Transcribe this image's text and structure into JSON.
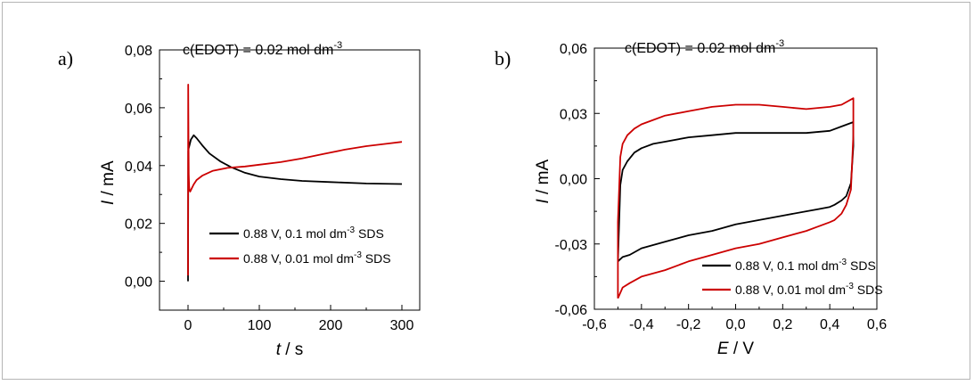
{
  "chart_data": [
    {
      "type": "line",
      "panel_label": "a)",
      "annotation": {
        "text": "c(EDOT) = 0.02 mol dm",
        "sup": "-3"
      },
      "xlabel": {
        "var": "t",
        "unit": " / s"
      },
      "ylabel": {
        "var": "I",
        "unit": " / mA"
      },
      "xlim": [
        -40,
        325
      ],
      "ylim": [
        -0.01,
        0.08
      ],
      "xticks": [
        0,
        100,
        200,
        300
      ],
      "xtick_labels": [
        "0",
        "100",
        "200",
        "300"
      ],
      "yticks": [
        0,
        0.02,
        0.04,
        0.06,
        0.08
      ],
      "ytick_labels": [
        "0,00",
        "0,02",
        "0,04",
        "0,06",
        "0,08"
      ],
      "grid": false,
      "legend_position": "center-right",
      "series": [
        {
          "name": {
            "pre": "0.88 V, 0.1 mol dm",
            "sup": "-3",
            "post": " SDS"
          },
          "color": "#000000",
          "x": [
            0,
            0.4,
            1,
            2,
            4,
            8,
            12,
            20,
            30,
            45,
            60,
            80,
            100,
            130,
            160,
            200,
            250,
            300
          ],
          "y": [
            0.0,
            0.045,
            0.046,
            0.047,
            0.049,
            0.0505,
            0.0495,
            0.047,
            0.0442,
            0.0415,
            0.0395,
            0.0375,
            0.0362,
            0.0353,
            0.0347,
            0.0343,
            0.0338,
            0.0336
          ]
        },
        {
          "name": {
            "pre": "0.88 V, 0.01 mol dm",
            "sup": "-3",
            "post": " SDS"
          },
          "color": "#cc0000",
          "x": [
            0,
            0.3,
            0.6,
            1,
            1.5,
            2,
            3,
            5,
            8,
            12,
            20,
            35,
            55,
            80,
            100,
            130,
            160,
            190,
            220,
            250,
            280,
            300
          ],
          "y": [
            0.002,
            0.068,
            0.05,
            0.037,
            0.033,
            0.0315,
            0.031,
            0.032,
            0.0335,
            0.035,
            0.0365,
            0.0382,
            0.0392,
            0.0397,
            0.0403,
            0.0412,
            0.0425,
            0.044,
            0.0455,
            0.0467,
            0.0476,
            0.0482
          ]
        }
      ]
    },
    {
      "type": "line",
      "panel_label": "b)",
      "annotation": {
        "text": "c(EDOT) = 0.02 mol dm",
        "sup": "-3"
      },
      "xlabel": {
        "var": "E",
        "unit": " / V"
      },
      "ylabel": {
        "var": "I",
        "unit": " / mA"
      },
      "xlim": [
        -0.6,
        0.6
      ],
      "ylim": [
        -0.06,
        0.06
      ],
      "xticks": [
        -0.6,
        -0.4,
        -0.2,
        0,
        0.2,
        0.4,
        0.6
      ],
      "xtick_labels": [
        "-0,6",
        "-0,4",
        "-0,2",
        "0,0",
        "0,2",
        "0,4",
        "0,6"
      ],
      "yticks": [
        -0.06,
        -0.03,
        0,
        0.03,
        0.06
      ],
      "ytick_labels": [
        "-0,06",
        "-0,03",
        "0,00",
        "0,03",
        "0,06"
      ],
      "grid": false,
      "legend_position": "bottom-right",
      "series": [
        {
          "name": {
            "pre": "0.88 V, 0.1 mol dm",
            "sup": "-3",
            "post": " SDS"
          },
          "color": "#000000",
          "x": [
            -0.5,
            -0.49,
            -0.48,
            -0.46,
            -0.43,
            -0.4,
            -0.35,
            -0.3,
            -0.2,
            -0.1,
            0.0,
            0.1,
            0.2,
            0.3,
            0.4,
            0.45,
            0.5,
            0.5,
            0.49,
            0.47,
            0.45,
            0.42,
            0.4,
            0.35,
            0.3,
            0.2,
            0.1,
            0.0,
            -0.1,
            -0.2,
            -0.3,
            -0.4,
            -0.45,
            -0.48,
            -0.5
          ],
          "y": [
            -0.038,
            -0.003,
            0.004,
            0.008,
            0.012,
            0.014,
            0.016,
            0.017,
            0.019,
            0.02,
            0.021,
            0.021,
            0.021,
            0.021,
            0.022,
            0.024,
            0.026,
            0.015,
            -0.002,
            -0.008,
            -0.01,
            -0.012,
            -0.013,
            -0.014,
            -0.015,
            -0.017,
            -0.019,
            -0.021,
            -0.024,
            -0.026,
            -0.029,
            -0.032,
            -0.035,
            -0.036,
            -0.038
          ]
        },
        {
          "name": {
            "pre": "0.88 V, 0.01 mol dm",
            "sup": "-3",
            "post": " SDS"
          },
          "color": "#cc0000",
          "x": [
            -0.5,
            -0.5,
            -0.49,
            -0.48,
            -0.46,
            -0.43,
            -0.4,
            -0.35,
            -0.3,
            -0.2,
            -0.1,
            0.0,
            0.1,
            0.2,
            0.3,
            0.4,
            0.45,
            0.5,
            0.5,
            0.49,
            0.47,
            0.45,
            0.42,
            0.4,
            0.35,
            0.3,
            0.2,
            0.1,
            0.0,
            -0.1,
            -0.2,
            -0.3,
            -0.4,
            -0.45,
            -0.48,
            -0.5
          ],
          "y": [
            -0.055,
            -0.02,
            0.01,
            0.016,
            0.02,
            0.023,
            0.025,
            0.027,
            0.029,
            0.031,
            0.033,
            0.034,
            0.034,
            0.033,
            0.032,
            0.033,
            0.034,
            0.037,
            0.02,
            -0.005,
            -0.012,
            -0.016,
            -0.019,
            -0.02,
            -0.022,
            -0.024,
            -0.027,
            -0.03,
            -0.032,
            -0.035,
            -0.038,
            -0.042,
            -0.045,
            -0.048,
            -0.05,
            -0.055
          ]
        }
      ]
    }
  ]
}
